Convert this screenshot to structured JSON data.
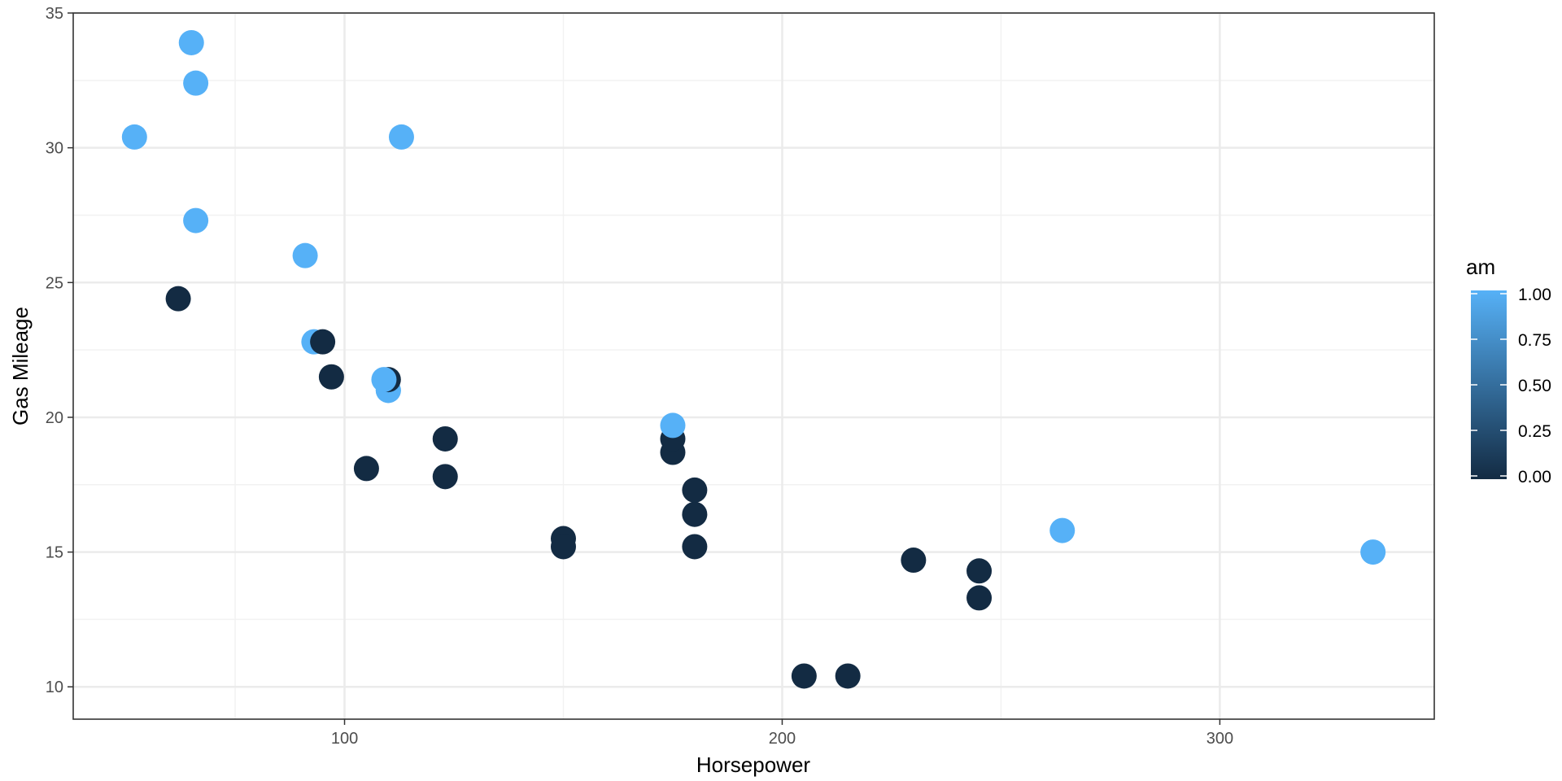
{
  "chart_data": {
    "type": "scatter",
    "xlabel": "Horsepower",
    "ylabel": "Gas Mileage",
    "xlim": [
      38,
      349
    ],
    "ylim": [
      8.8,
      35
    ],
    "x_ticks": [
      100,
      200,
      300
    ],
    "x_tick_labels": [
      "100",
      "200",
      "300"
    ],
    "y_ticks": [
      10,
      15,
      20,
      25,
      30,
      35
    ],
    "y_tick_labels": [
      "10",
      "15",
      "20",
      "25",
      "30",
      "35"
    ],
    "grid": true,
    "legend": {
      "title": "am",
      "type": "colorbar",
      "position": "right",
      "breaks": [
        0,
        0.25,
        0.5,
        0.75,
        1
      ],
      "labels": [
        "0.00",
        "0.25",
        "0.50",
        "0.75",
        "1.00"
      ],
      "low_color": "#132B43",
      "high_color": "#56B1F7"
    },
    "series": [
      {
        "color_variable": "am",
        "points": [
          {
            "x": 110,
            "y": 21.0,
            "am": 1
          },
          {
            "x": 110,
            "y": 21.0,
            "am": 1
          },
          {
            "x": 93,
            "y": 22.8,
            "am": 1
          },
          {
            "x": 110,
            "y": 21.4,
            "am": 0
          },
          {
            "x": 175,
            "y": 18.7,
            "am": 0
          },
          {
            "x": 105,
            "y": 18.1,
            "am": 0
          },
          {
            "x": 245,
            "y": 14.3,
            "am": 0
          },
          {
            "x": 62,
            "y": 24.4,
            "am": 0
          },
          {
            "x": 95,
            "y": 22.8,
            "am": 0
          },
          {
            "x": 123,
            "y": 19.2,
            "am": 0
          },
          {
            "x": 123,
            "y": 17.8,
            "am": 0
          },
          {
            "x": 180,
            "y": 16.4,
            "am": 0
          },
          {
            "x": 180,
            "y": 17.3,
            "am": 0
          },
          {
            "x": 180,
            "y": 15.2,
            "am": 0
          },
          {
            "x": 205,
            "y": 10.4,
            "am": 0
          },
          {
            "x": 215,
            "y": 10.4,
            "am": 0
          },
          {
            "x": 230,
            "y": 14.7,
            "am": 0
          },
          {
            "x": 66,
            "y": 32.4,
            "am": 1
          },
          {
            "x": 52,
            "y": 30.4,
            "am": 1
          },
          {
            "x": 65,
            "y": 33.9,
            "am": 1
          },
          {
            "x": 97,
            "y": 21.5,
            "am": 0
          },
          {
            "x": 150,
            "y": 15.5,
            "am": 0
          },
          {
            "x": 150,
            "y": 15.2,
            "am": 0
          },
          {
            "x": 245,
            "y": 13.3,
            "am": 0
          },
          {
            "x": 175,
            "y": 19.2,
            "am": 0
          },
          {
            "x": 66,
            "y": 27.3,
            "am": 1
          },
          {
            "x": 91,
            "y": 26.0,
            "am": 1
          },
          {
            "x": 113,
            "y": 30.4,
            "am": 1
          },
          {
            "x": 264,
            "y": 15.8,
            "am": 1
          },
          {
            "x": 175,
            "y": 19.7,
            "am": 1
          },
          {
            "x": 335,
            "y": 15.0,
            "am": 1
          },
          {
            "x": 109,
            "y": 21.4,
            "am": 1
          }
        ]
      }
    ],
    "colors": {
      "panel_border": "#333333",
      "grid_major": "#ebebeb",
      "grid_minor": "#f2f2f2",
      "tick_text": "#4d4d4d",
      "title_text": "#000000"
    }
  }
}
